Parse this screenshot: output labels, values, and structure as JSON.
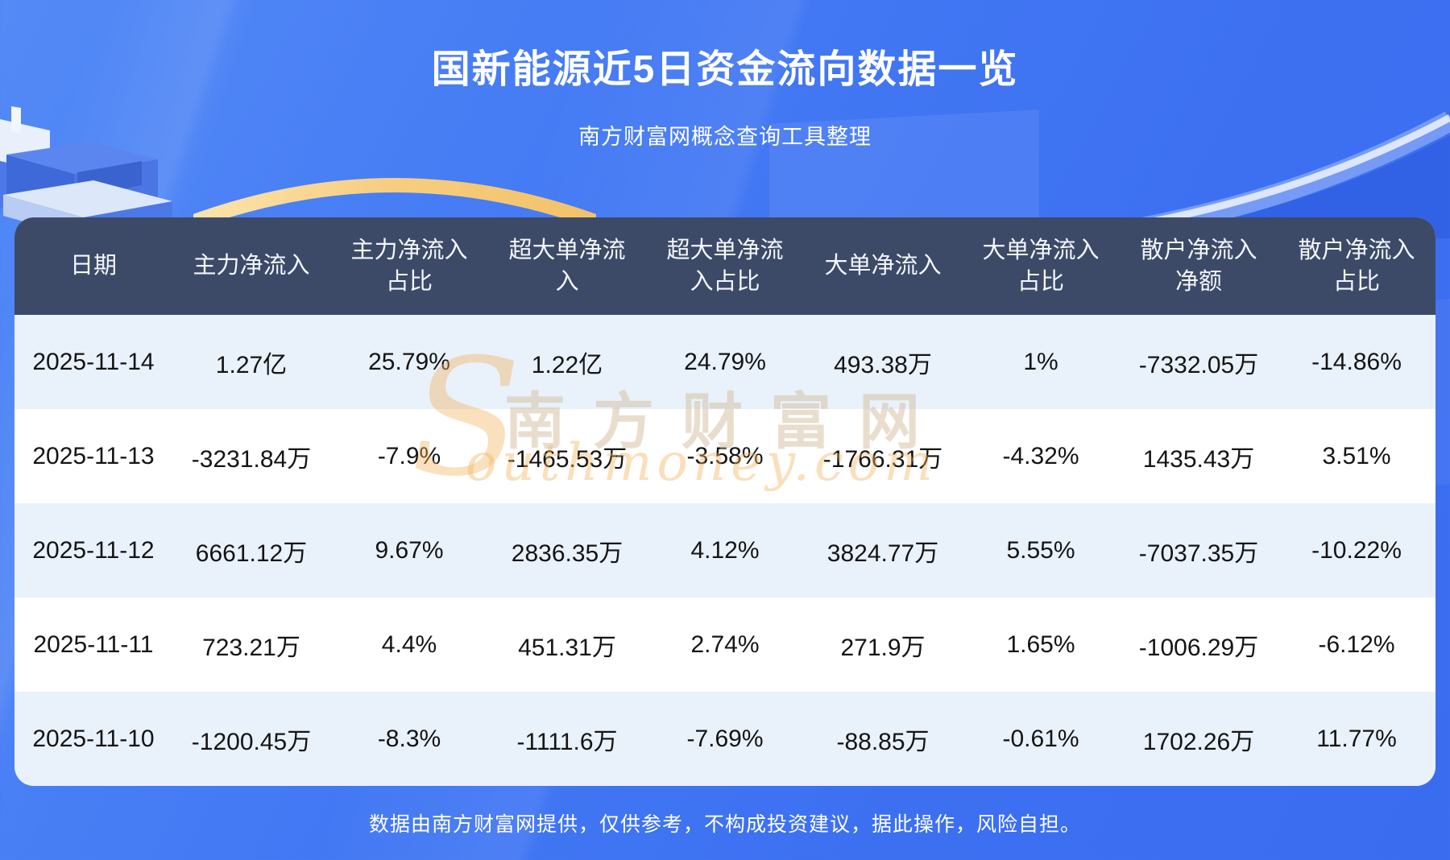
{
  "page": {
    "title": "国新能源近5日资金流向数据一览",
    "subtitle": "南方财富网概念查询工具整理",
    "footer": "数据由南方财富网提供，仅供参考，不构成投资建议，据此操作，风险自担。"
  },
  "watermark": {
    "initial": "S",
    "cn": "南方财富网",
    "en": "outhmoney.com"
  },
  "colors": {
    "background_top": "#538af6",
    "background_bottom": "#3a6cf0",
    "header_bg": "#3c4a68",
    "row_alt_bg": "#e9f1fb",
    "row_bg": "#ffffff",
    "gold_accent": "#f6cd80",
    "title_text": "#ffffff"
  },
  "chart_data": {
    "type": "table",
    "title": "国新能源近5日资金流向数据一览",
    "subtitle": "南方财富网概念查询工具整理",
    "columns": [
      "日期",
      "主力净流入",
      "主力净流入\n占比",
      "超大单净流\n入",
      "超大单净流\n入占比",
      "大单净流入",
      "大单净流入\n占比",
      "散户净流入\n净额",
      "散户净流入\n占比"
    ],
    "rows": [
      [
        "2025-11-14",
        "1.27亿",
        "25.79%",
        "1.22亿",
        "24.79%",
        "493.38万",
        "1%",
        "-7332.05万",
        "-14.86%"
      ],
      [
        "2025-11-13",
        "-3231.84万",
        "-7.9%",
        "-1465.53万",
        "-3.58%",
        "-1766.31万",
        "-4.32%",
        "1435.43万",
        "3.51%"
      ],
      [
        "2025-11-12",
        "6661.12万",
        "9.67%",
        "2836.35万",
        "4.12%",
        "3824.77万",
        "5.55%",
        "-7037.35万",
        "-10.22%"
      ],
      [
        "2025-11-11",
        "723.21万",
        "4.4%",
        "451.31万",
        "2.74%",
        "271.9万",
        "1.65%",
        "-1006.29万",
        "-6.12%"
      ],
      [
        "2025-11-10",
        "-1200.45万",
        "-8.3%",
        "-1111.6万",
        "-7.69%",
        "-88.85万",
        "-0.61%",
        "1702.26万",
        "11.77%"
      ]
    ]
  }
}
